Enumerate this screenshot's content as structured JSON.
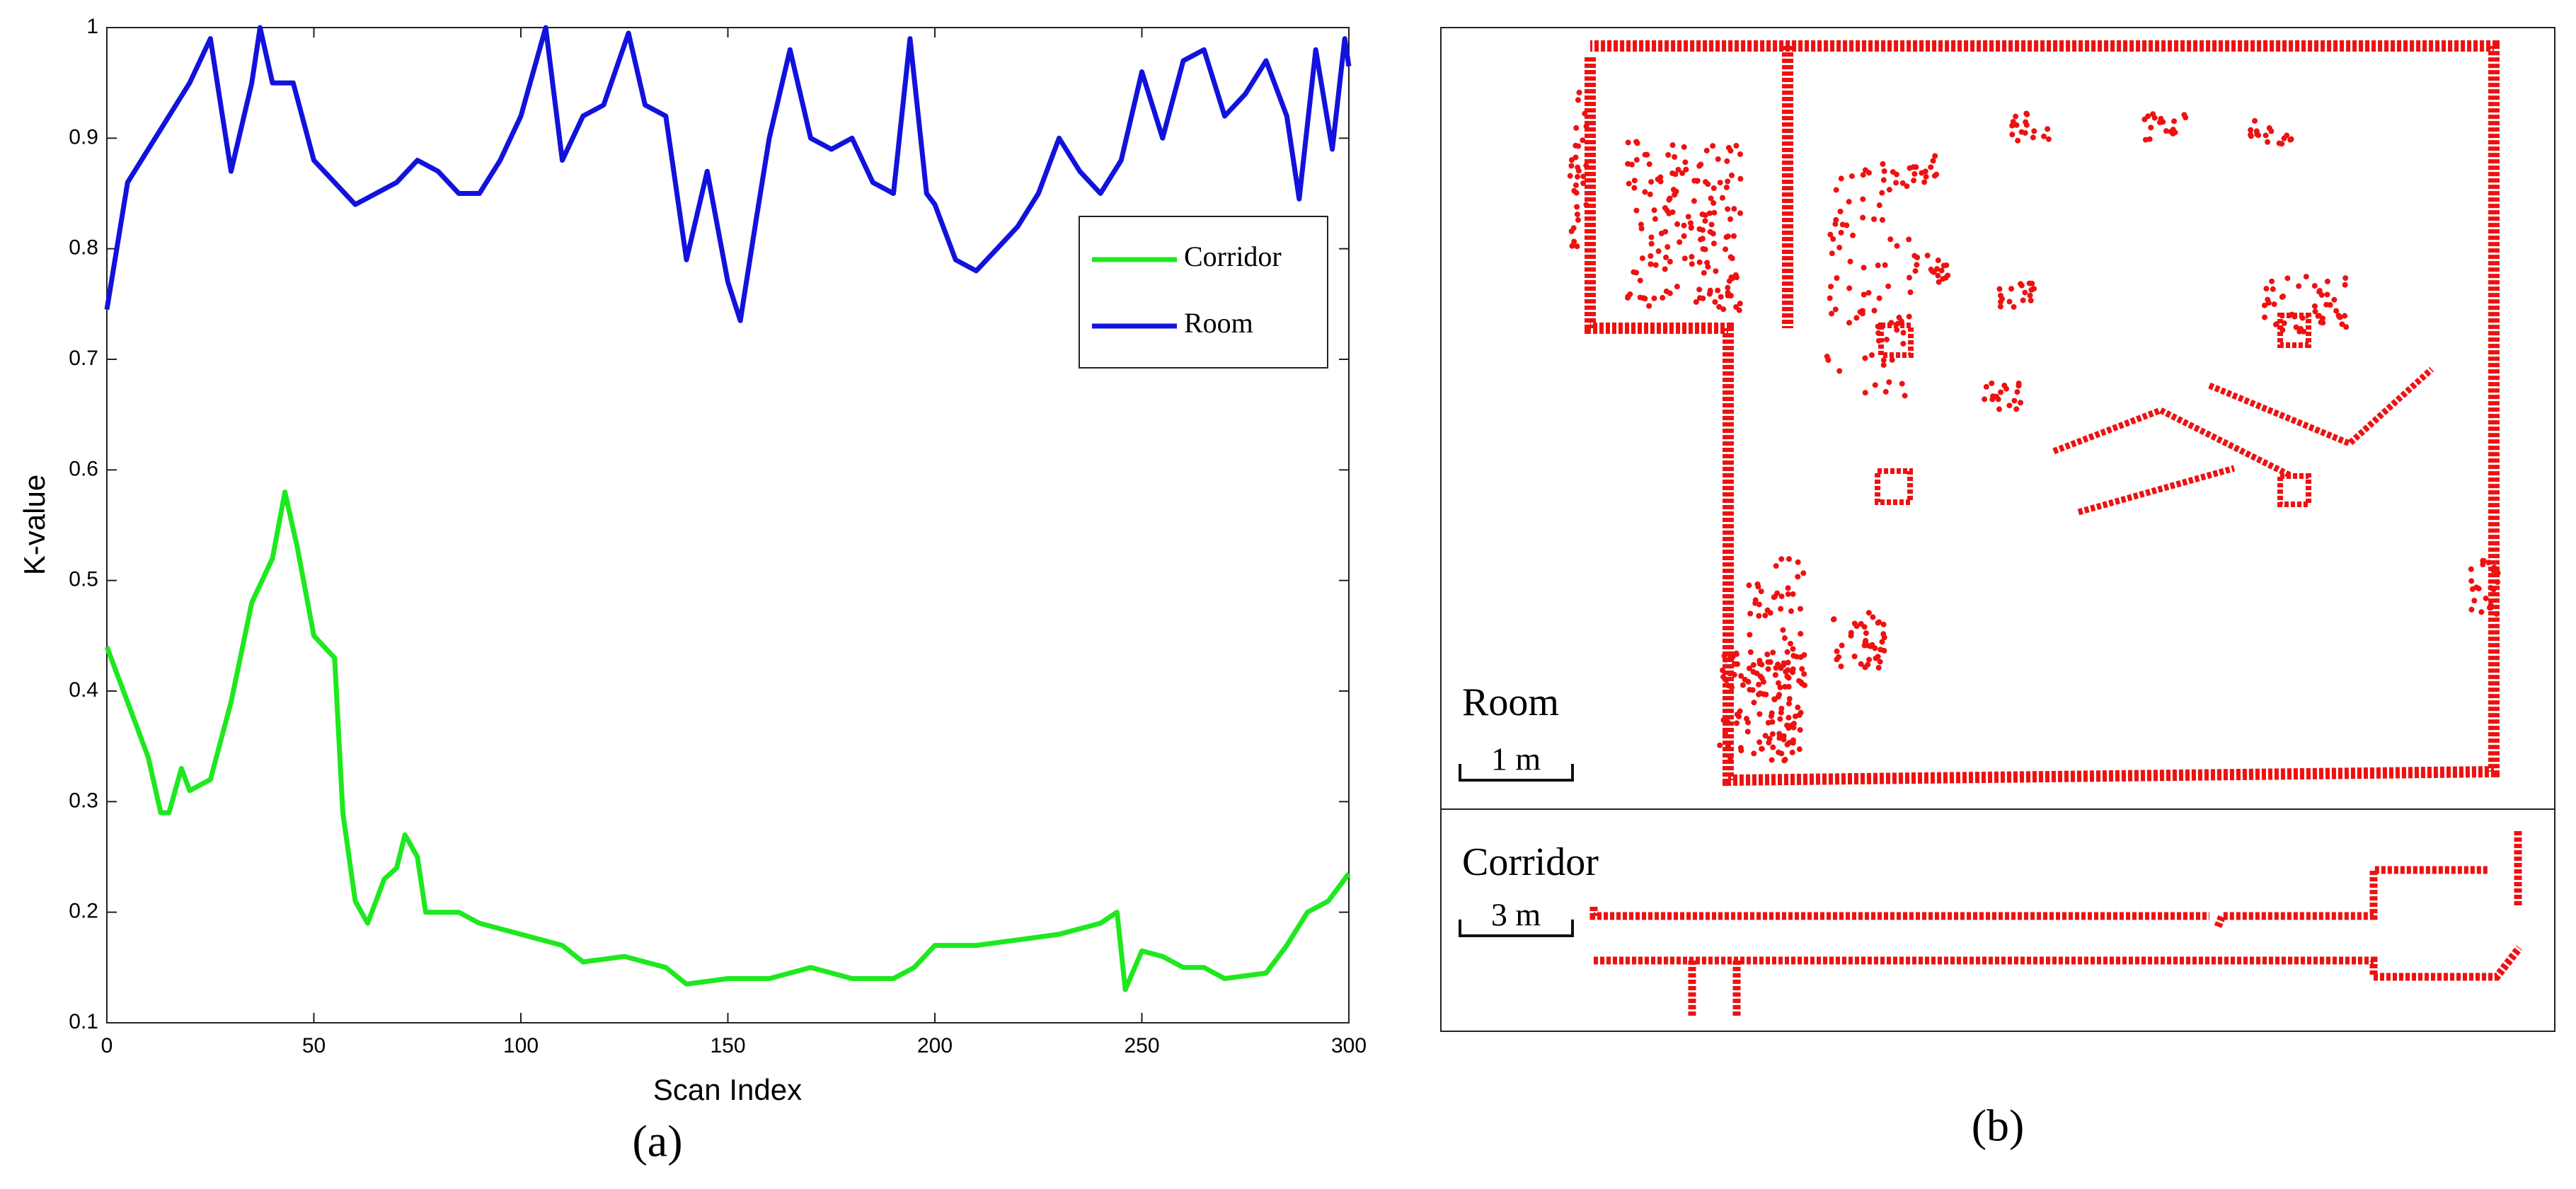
{
  "chart_data": {
    "type": "line",
    "caption": "(a)",
    "xlabel": "Scan Index",
    "ylabel": "K-value",
    "xlim": [
      0,
      300
    ],
    "xticks": [
      0,
      50,
      100,
      150,
      200,
      250,
      300
    ],
    "ylim": [
      0.1,
      1
    ],
    "yticks": [
      0.1,
      0.2,
      0.3,
      0.4,
      0.5,
      0.6,
      0.7,
      0.8,
      0.9,
      1
    ],
    "legend": "right",
    "series": [
      {
        "name": "Corridor",
        "color": "#1ee81e",
        "x": [
          0,
          5,
          10,
          13,
          15,
          18,
          20,
          25,
          30,
          35,
          40,
          43,
          46,
          50,
          55,
          57,
          60,
          63,
          67,
          70,
          72,
          75,
          77,
          85,
          90,
          100,
          110,
          115,
          125,
          135,
          140,
          150,
          160,
          170,
          180,
          190,
          195,
          200,
          210,
          220,
          230,
          240,
          244,
          246,
          250,
          255,
          260,
          265,
          270,
          280,
          285,
          290,
          295,
          300
        ],
        "values": [
          0.44,
          0.39,
          0.34,
          0.29,
          0.29,
          0.33,
          0.31,
          0.32,
          0.39,
          0.48,
          0.52,
          0.58,
          0.53,
          0.45,
          0.43,
          0.29,
          0.21,
          0.19,
          0.23,
          0.24,
          0.27,
          0.25,
          0.2,
          0.2,
          0.19,
          0.18,
          0.17,
          0.155,
          0.16,
          0.15,
          0.135,
          0.14,
          0.14,
          0.15,
          0.14,
          0.14,
          0.15,
          0.17,
          0.17,
          0.175,
          0.18,
          0.19,
          0.2,
          0.13,
          0.165,
          0.16,
          0.15,
          0.15,
          0.14,
          0.145,
          0.17,
          0.2,
          0.21,
          0.235
        ]
      },
      {
        "name": "Room",
        "color": "#1212dd",
        "x": [
          0,
          5,
          10,
          15,
          20,
          25,
          30,
          35,
          37,
          40,
          45,
          50,
          55,
          60,
          65,
          70,
          75,
          80,
          85,
          90,
          95,
          100,
          106,
          110,
          115,
          120,
          126,
          130,
          135,
          140,
          145,
          150,
          153,
          157,
          160,
          165,
          170,
          175,
          180,
          185,
          190,
          194,
          198,
          200,
          205,
          210,
          215,
          220,
          225,
          230,
          235,
          240,
          245,
          250,
          255,
          260,
          265,
          270,
          275,
          280,
          285,
          288,
          292,
          296,
          299,
          300
        ],
        "values": [
          0.745,
          0.86,
          0.89,
          0.92,
          0.95,
          0.99,
          0.87,
          0.95,
          1.0,
          0.95,
          0.95,
          0.88,
          0.86,
          0.84,
          0.85,
          0.86,
          0.88,
          0.87,
          0.85,
          0.85,
          0.88,
          0.92,
          1.0,
          0.88,
          0.92,
          0.93,
          0.995,
          0.93,
          0.92,
          0.79,
          0.87,
          0.77,
          0.735,
          0.83,
          0.9,
          0.98,
          0.9,
          0.89,
          0.9,
          0.86,
          0.85,
          0.99,
          0.85,
          0.84,
          0.79,
          0.78,
          0.8,
          0.82,
          0.85,
          0.9,
          0.87,
          0.85,
          0.88,
          0.96,
          0.9,
          0.97,
          0.98,
          0.92,
          0.94,
          0.97,
          0.92,
          0.845,
          0.98,
          0.89,
          0.99,
          0.965
        ]
      }
    ]
  },
  "map": {
    "caption": "(b)",
    "room_label": "Room",
    "room_scale": "1 m",
    "corridor_label": "Corridor",
    "corridor_scale": "3 m"
  }
}
